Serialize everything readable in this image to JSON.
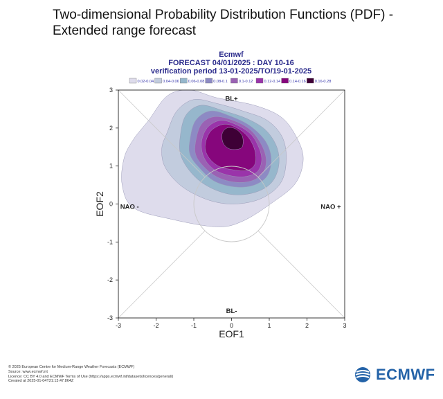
{
  "page": {
    "title_line1": "Two-dimensional Probability Distribution Functions (PDF) -",
    "title_line2": "Extended range forecast"
  },
  "chart_data": {
    "type": "contour",
    "header": {
      "source": "Ecmwf",
      "forecast": "FORECAST 04/01/2025 : DAY 10-16",
      "verification": "verification period 13-01-2025/TO/19-01-2025"
    },
    "xlabel": "EOF1",
    "ylabel": "EOF2",
    "xlim": [
      -3,
      3
    ],
    "ylim": [
      -3,
      3
    ],
    "xticks": [
      -3,
      -2,
      -1,
      0,
      1,
      2,
      3
    ],
    "yticks": [
      -3,
      -2,
      -1,
      0,
      1,
      2,
      3
    ],
    "xtick_labels": [
      "-3",
      "-2",
      "-1",
      "0",
      "1",
      "2",
      "3"
    ],
    "ytick_labels": [
      "3",
      "2",
      "1",
      "0",
      "-1",
      "-2",
      "-3"
    ],
    "regime_labels": {
      "top": "BL+",
      "bottom": "BL-",
      "left": "NAO -",
      "right": "NAO +"
    },
    "reference_circle_radius": 1,
    "legend": [
      {
        "label": "0.02-0.04",
        "color": "#dedcec"
      },
      {
        "label": "0.04-0.06",
        "color": "#c2ccde"
      },
      {
        "label": "0.06-0.08",
        "color": "#96b7cc"
      },
      {
        "label": "0.08-0.1",
        "color": "#8d8ac4"
      },
      {
        "label": "0.1-0.12",
        "color": "#9a62b4"
      },
      {
        "label": "0.12-0.14",
        "color": "#9a34aa"
      },
      {
        "label": "0.14-0.16",
        "color": "#86067c"
      },
      {
        "label": "0.16-0.28",
        "color": "#3e0036"
      }
    ],
    "contours": [
      {
        "level": "0.02-0.04",
        "color": "#dedcec",
        "outline": [
          [
            -2.2,
            2.2
          ],
          [
            -1.7,
            2.85
          ],
          [
            -1.1,
            3.0
          ],
          [
            -0.4,
            2.8
          ],
          [
            0.6,
            2.6
          ],
          [
            1.3,
            2.3
          ],
          [
            1.7,
            1.8
          ],
          [
            1.9,
            1.2
          ],
          [
            1.7,
            0.55
          ],
          [
            1.1,
            0.05
          ],
          [
            0.3,
            -0.45
          ],
          [
            -0.4,
            -0.6
          ],
          [
            -1.6,
            -0.4
          ],
          [
            -2.6,
            -0.1
          ],
          [
            -2.9,
            0.5
          ],
          [
            -2.85,
            1.2
          ],
          [
            -2.6,
            1.7
          ]
        ]
      },
      {
        "level": "0.04-0.06",
        "color": "#c2ccde",
        "outline": [
          [
            -1.7,
            1.9
          ],
          [
            -1.45,
            2.45
          ],
          [
            -1.0,
            2.75
          ],
          [
            -0.4,
            2.65
          ],
          [
            0.3,
            2.45
          ],
          [
            0.95,
            2.2
          ],
          [
            1.35,
            1.75
          ],
          [
            1.45,
            1.15
          ],
          [
            1.3,
            0.55
          ],
          [
            0.8,
            0.15
          ],
          [
            0.1,
            0.0
          ],
          [
            -0.6,
            0.1
          ],
          [
            -1.3,
            0.45
          ],
          [
            -1.75,
            0.95
          ],
          [
            -1.85,
            1.45
          ]
        ]
      },
      {
        "level": "0.06-0.08",
        "color": "#96b7cc",
        "outline": [
          [
            -1.35,
            1.85
          ],
          [
            -1.2,
            2.35
          ],
          [
            -0.8,
            2.6
          ],
          [
            -0.2,
            2.45
          ],
          [
            0.4,
            2.25
          ],
          [
            0.9,
            1.95
          ],
          [
            1.2,
            1.5
          ],
          [
            1.25,
            1.0
          ],
          [
            1.05,
            0.55
          ],
          [
            0.6,
            0.3
          ],
          [
            0.0,
            0.25
          ],
          [
            -0.6,
            0.45
          ],
          [
            -1.05,
            0.8
          ],
          [
            -1.35,
            1.3
          ]
        ]
      },
      {
        "level": "0.08-0.1",
        "color": "#8d8ac4",
        "outline": [
          [
            -1.1,
            1.7
          ],
          [
            -0.95,
            2.2
          ],
          [
            -0.55,
            2.45
          ],
          [
            0.0,
            2.3
          ],
          [
            0.5,
            2.05
          ],
          [
            0.9,
            1.65
          ],
          [
            1.05,
            1.2
          ],
          [
            0.95,
            0.75
          ],
          [
            0.6,
            0.5
          ],
          [
            0.1,
            0.45
          ],
          [
            -0.45,
            0.6
          ],
          [
            -0.85,
            0.95
          ],
          [
            -1.1,
            1.3
          ]
        ]
      },
      {
        "level": "0.1-0.12",
        "color": "#9a62b4",
        "outline": [
          [
            -0.95,
            1.65
          ],
          [
            -0.8,
            2.1
          ],
          [
            -0.45,
            2.3
          ],
          [
            0.05,
            2.2
          ],
          [
            0.5,
            1.95
          ],
          [
            0.8,
            1.55
          ],
          [
            0.92,
            1.15
          ],
          [
            0.82,
            0.8
          ],
          [
            0.5,
            0.6
          ],
          [
            0.05,
            0.58
          ],
          [
            -0.4,
            0.72
          ],
          [
            -0.75,
            1.0
          ],
          [
            -0.95,
            1.3
          ]
        ]
      },
      {
        "level": "0.12-0.14",
        "color": "#9a34aa",
        "outline": [
          [
            -0.8,
            1.6
          ],
          [
            -0.65,
            2.0
          ],
          [
            -0.3,
            2.2
          ],
          [
            0.1,
            2.1
          ],
          [
            0.5,
            1.85
          ],
          [
            0.72,
            1.5
          ],
          [
            0.8,
            1.15
          ],
          [
            0.68,
            0.85
          ],
          [
            0.35,
            0.72
          ],
          [
            -0.05,
            0.75
          ],
          [
            -0.45,
            0.9
          ],
          [
            -0.72,
            1.2
          ]
        ]
      },
      {
        "level": "0.14-0.16",
        "color": "#86067c",
        "outline": [
          [
            -0.7,
            1.55
          ],
          [
            -0.55,
            1.92
          ],
          [
            -0.2,
            2.1
          ],
          [
            0.15,
            2.0
          ],
          [
            0.45,
            1.75
          ],
          [
            0.62,
            1.4
          ],
          [
            0.62,
            1.05
          ],
          [
            0.4,
            0.88
          ],
          [
            0.05,
            0.9
          ],
          [
            -0.35,
            1.0
          ],
          [
            -0.62,
            1.25
          ]
        ]
      },
      {
        "level": "0.16-0.28",
        "color": "#3e0036",
        "outline": [
          [
            -0.25,
            1.85
          ],
          [
            -0.12,
            2.0
          ],
          [
            0.1,
            1.98
          ],
          [
            0.28,
            1.8
          ],
          [
            0.3,
            1.55
          ],
          [
            0.2,
            1.45
          ],
          [
            -0.05,
            1.45
          ],
          [
            -0.22,
            1.6
          ]
        ]
      }
    ]
  },
  "footer": {
    "line1": "© 2025 European Centre for Medium-Range Weather Forecasts (ECMWF)",
    "line2": "Source: www.ecmwf.int",
    "line3": "Licence: CC BY 4.0 and ECMWF Terms of Use (https://apps.ecmwf.int/datasets/licences/general/)",
    "line4": "Created at 2025-01-04T21:13:47.864Z"
  },
  "logo": {
    "text": "ECMWF",
    "color": "#2463a8"
  }
}
